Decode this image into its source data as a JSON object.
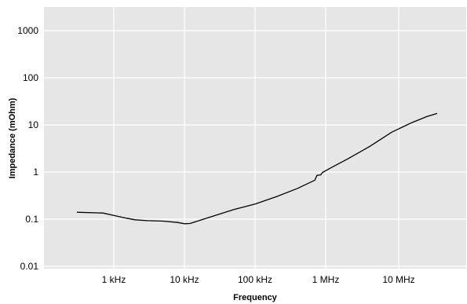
{
  "chart_data": {
    "type": "line",
    "title": "",
    "xlabel": "Frequency",
    "ylabel": "Impedance (mOhm)",
    "x_scale": "log",
    "y_scale": "log",
    "xlim": [
      "100 Hz",
      "100 MHz"
    ],
    "ylim": [
      0.01,
      3000
    ],
    "grid": true,
    "x_ticks": [
      {
        "label": "1 kHz",
        "value_hz": 1000
      },
      {
        "label": "10 kHz",
        "value_hz": 10000
      },
      {
        "label": "100 kHz",
        "value_hz": 100000
      },
      {
        "label": "1 MHz",
        "value_hz": 1000000
      },
      {
        "label": "10 MHz",
        "value_hz": 10000000
      }
    ],
    "y_ticks": [
      {
        "label": "0.01",
        "value": 0.01
      },
      {
        "label": "0.1",
        "value": 0.1
      },
      {
        "label": "1",
        "value": 1
      },
      {
        "label": "10",
        "value": 10
      },
      {
        "label": "100",
        "value": 100
      },
      {
        "label": "1000",
        "value": 1000
      }
    ],
    "series": [
      {
        "color": "#000000",
        "points": [
          {
            "x_hz": 300,
            "y": 0.14
          },
          {
            "x_hz": 700,
            "y": 0.135
          },
          {
            "x_hz": 1000,
            "y": 0.12
          },
          {
            "x_hz": 1500,
            "y": 0.105
          },
          {
            "x_hz": 2000,
            "y": 0.097
          },
          {
            "x_hz": 3000,
            "y": 0.093
          },
          {
            "x_hz": 5000,
            "y": 0.091
          },
          {
            "x_hz": 8000,
            "y": 0.085
          },
          {
            "x_hz": 10000,
            "y": 0.08
          },
          {
            "x_hz": 12000,
            "y": 0.081
          },
          {
            "x_hz": 15000,
            "y": 0.09
          },
          {
            "x_hz": 25000,
            "y": 0.115
          },
          {
            "x_hz": 50000,
            "y": 0.16
          },
          {
            "x_hz": 100000,
            "y": 0.21
          },
          {
            "x_hz": 200000,
            "y": 0.3
          },
          {
            "x_hz": 400000,
            "y": 0.45
          },
          {
            "x_hz": 600000,
            "y": 0.6
          },
          {
            "x_hz": 700000,
            "y": 0.67
          },
          {
            "x_hz": 750000,
            "y": 0.85
          },
          {
            "x_hz": 850000,
            "y": 0.87
          },
          {
            "x_hz": 900000,
            "y": 0.98
          },
          {
            "x_hz": 1200000,
            "y": 1.25
          },
          {
            "x_hz": 2000000,
            "y": 1.9
          },
          {
            "x_hz": 4000000,
            "y": 3.5
          },
          {
            "x_hz": 8000000,
            "y": 7
          },
          {
            "x_hz": 15000000,
            "y": 11
          },
          {
            "x_hz": 25000000,
            "y": 15
          },
          {
            "x_hz": 35000000,
            "y": 17.5
          }
        ]
      }
    ]
  }
}
